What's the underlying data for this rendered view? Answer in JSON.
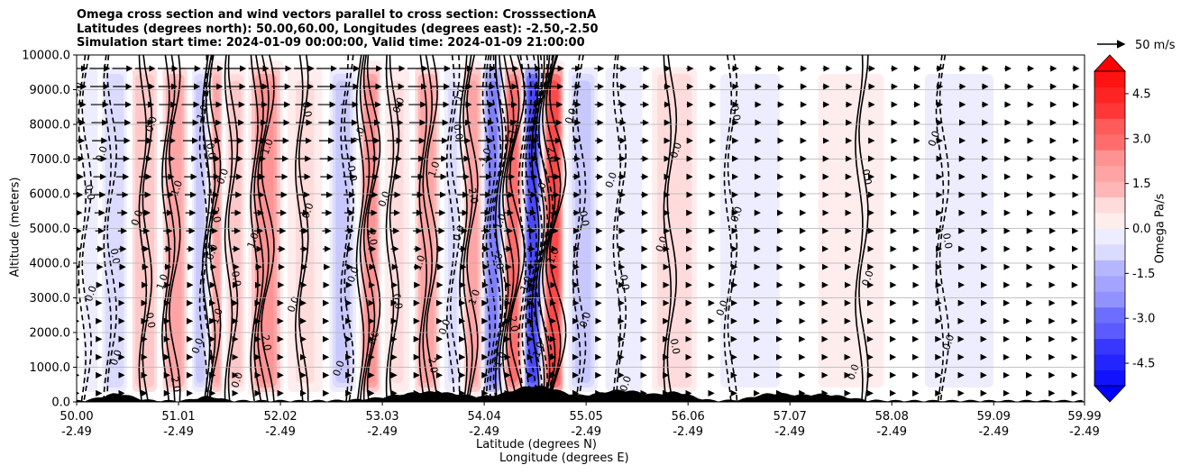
{
  "title_lines": [
    "Omega cross section and wind vectors parallel to cross section: CrosssectionA",
    "Latitudes (degrees north): 50.00,60.00, Longitudes (degrees east): -2.50,-2.50",
    "Simulation start time: 2024-01-09 00:00:00, Valid time: 2024-01-09 21:00:00"
  ],
  "chart_data": {
    "type": "heatmap",
    "xlabel_line1": "Latitude (degrees N)",
    "xlabel_line2": "Longitude (degrees E)",
    "ylabel": "Altitude (meters)",
    "ylim": [
      0,
      10000
    ],
    "yticks": [
      "0.0",
      "1000.0",
      "2000.0",
      "3000.0",
      "4000.0",
      "5000.0",
      "6000.0",
      "7000.0",
      "8000.0",
      "9000.0",
      "10000.0"
    ],
    "xticks": [
      {
        "lat": "50.00",
        "lon": "-2.49"
      },
      {
        "lat": "51.01",
        "lon": "-2.49"
      },
      {
        "lat": "52.02",
        "lon": "-2.49"
      },
      {
        "lat": "53.03",
        "lon": "-2.49"
      },
      {
        "lat": "54.04",
        "lon": "-2.49"
      },
      {
        "lat": "55.05",
        "lon": "-2.49"
      },
      {
        "lat": "56.06",
        "lon": "-2.49"
      },
      {
        "lat": "57.07",
        "lon": "-2.49"
      },
      {
        "lat": "58.08",
        "lon": "-2.49"
      },
      {
        "lat": "59.09",
        "lon": "-2.49"
      },
      {
        "lat": "59.99",
        "lon": "-2.49"
      }
    ],
    "xlim": [
      50.0,
      59.99
    ],
    "grid": "horizontal",
    "colorbar": {
      "label": "Omega Pa/s",
      "range": [
        -5.25,
        5.25
      ],
      "extend": "both",
      "ticks": [
        "-4.5",
        "-3.0",
        "-1.5",
        "0.0",
        "1.5",
        "3.0",
        "4.5"
      ],
      "negative_color": "#0000ff",
      "positive_color": "#ff0000",
      "neutral_color": "#ffffff"
    },
    "vector_key": {
      "label": "50 m/s",
      "speed": 50
    },
    "omega_bands": [
      {
        "lat": 50.1,
        "value": -0.6
      },
      {
        "lat": 50.35,
        "value": -0.9
      },
      {
        "lat": 50.7,
        "value": 1.5
      },
      {
        "lat": 50.95,
        "value": 2.1
      },
      {
        "lat": 51.3,
        "value": -1.2
      },
      {
        "lat": 51.35,
        "value": 2.4
      },
      {
        "lat": 51.55,
        "value": 1.2
      },
      {
        "lat": 51.85,
        "value": 2.7
      },
      {
        "lat": 52.25,
        "value": 0.8
      },
      {
        "lat": 52.7,
        "value": -1.2
      },
      {
        "lat": 52.9,
        "value": 2.7
      },
      {
        "lat": 53.15,
        "value": 0.8
      },
      {
        "lat": 53.5,
        "value": 2.1
      },
      {
        "lat": 53.75,
        "value": -0.8
      },
      {
        "lat": 53.9,
        "value": 2.4
      },
      {
        "lat": 54.15,
        "value": -3.0
      },
      {
        "lat": 54.3,
        "value": 3.6
      },
      {
        "lat": 54.55,
        "value": -4.5
      },
      {
        "lat": 54.68,
        "value": 4.5
      },
      {
        "lat": 55.0,
        "value": -1.2
      },
      {
        "lat": 55.4,
        "value": -0.6
      },
      {
        "lat": 55.9,
        "value": 0.9
      },
      {
        "lat": 56.5,
        "value": -0.3
      },
      {
        "lat": 57.8,
        "value": 0.3
      },
      {
        "lat": 58.6,
        "value": -0.3
      }
    ],
    "contour_labels": [
      "0.0",
      "-1.0",
      "1.0",
      "2.0",
      "3.0",
      "-2.0",
      "-3.0"
    ],
    "topography_peak_lat": 54.55
  },
  "colors": {
    "grid": "#b0b0b0",
    "terrain": "#000000"
  }
}
